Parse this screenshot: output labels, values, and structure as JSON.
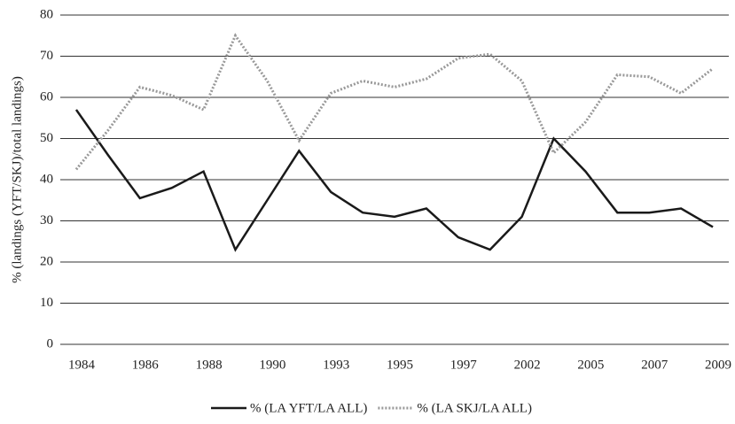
{
  "chart_data": {
    "type": "line",
    "y_label": "% (landings (YFT/SKJ)/total landings)",
    "categories": [
      "1984",
      null,
      "1986",
      null,
      "1988",
      null,
      "1990",
      null,
      "1993",
      null,
      "1995",
      null,
      "1997",
      null,
      "2002",
      null,
      "2005",
      null,
      "2007",
      null,
      "2009"
    ],
    "series": [
      {
        "name": "% (LA YFT/LA ALL)",
        "color": "#1a1a1a",
        "dash": "solid",
        "values": [
          57,
          46,
          35.5,
          38,
          42,
          23,
          35,
          47,
          37,
          32,
          31,
          33,
          26,
          23,
          31,
          50,
          42,
          32,
          32,
          33,
          28.5
        ]
      },
      {
        "name": "% (LA SKJ/LA ALL)",
        "color": "#999999",
        "dash": "dotted",
        "values": [
          42.5,
          52,
          62.5,
          60.5,
          57,
          75,
          64,
          49.5,
          61,
          64,
          62.5,
          64.5,
          69.5,
          70.5,
          64,
          46.5,
          54,
          65.5,
          65,
          61,
          67
        ]
      }
    ],
    "ylim": [
      0,
      80
    ],
    "yticks": [
      0,
      10,
      20,
      30,
      40,
      50,
      60,
      70,
      80
    ],
    "grid": true,
    "legend": "bottom"
  }
}
